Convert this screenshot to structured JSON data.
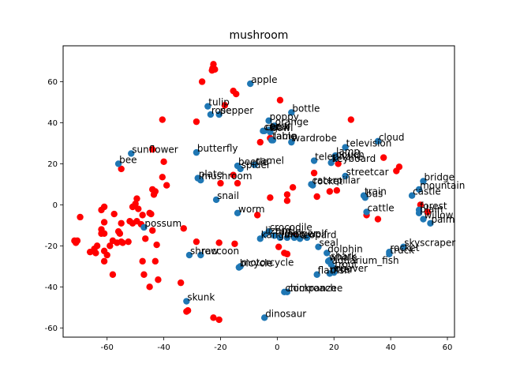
{
  "chart_data": {
    "type": "scatter",
    "title": "mushroom",
    "xlabel": "",
    "ylabel": "",
    "xlim": [
      -75.5,
      62.5
    ],
    "ylim": [
      -64.5,
      77.5
    ],
    "xticks": [
      -60,
      -40,
      -20,
      0,
      20,
      40,
      60
    ],
    "yticks": [
      -60,
      -40,
      -20,
      0,
      20,
      40,
      60
    ],
    "grid": false,
    "colors": {
      "labeled": "#1f77b4",
      "unlabeled": "#ff0000"
    },
    "labeled_points": [
      {
        "label": "apple",
        "x": -9.5,
        "y": 59.0
      },
      {
        "label": "tulip",
        "x": -24.5,
        "y": 48.0
      },
      {
        "label": "rose",
        "x": -23.5,
        "y": 44.0
      },
      {
        "label": "pepper",
        "x": -20.5,
        "y": 44.0
      },
      {
        "label": "bottle",
        "x": 5.0,
        "y": 45.0
      },
      {
        "label": "poppy",
        "x": -3.0,
        "y": 41.0
      },
      {
        "label": "orange",
        "x": -1.0,
        "y": 38.5
      },
      {
        "label": "pear",
        "x": -3.0,
        "y": 36.5
      },
      {
        "label": "cup",
        "x": -5.0,
        "y": 36.0
      },
      {
        "label": "bowl",
        "x": -2.5,
        "y": 35.5
      },
      {
        "label": "plate",
        "x": -28.0,
        "y": 13.0
      },
      {
        "label": "mushroom",
        "x": -27.0,
        "y": 12.0
      },
      {
        "label": "clock",
        "x": -4.5,
        "y": 36.0
      },
      {
        "label": "lamp",
        "x": -1.5,
        "y": 31.5
      },
      {
        "label": "table",
        "x": -2.0,
        "y": 31.5
      },
      {
        "label": "wardrobe",
        "x": 5.0,
        "y": 30.5
      },
      {
        "label": "cloud",
        "x": 35.5,
        "y": 31.0
      },
      {
        "label": "television",
        "x": 24.0,
        "y": 28.0
      },
      {
        "label": "lamp",
        "x": 20.5,
        "y": 24.0
      },
      {
        "label": "couch",
        "x": 20.5,
        "y": 22.5
      },
      {
        "label": "keyboard",
        "x": 19.0,
        "y": 20.5
      },
      {
        "label": "telephone",
        "x": 13.0,
        "y": 21.5
      },
      {
        "label": "sunflower",
        "x": -51.5,
        "y": 25.0
      },
      {
        "label": "butterfly",
        "x": -28.5,
        "y": 25.5
      },
      {
        "label": "bee",
        "x": -56.0,
        "y": 20.0
      },
      {
        "label": "beetle",
        "x": -14.0,
        "y": 19.0
      },
      {
        "label": "caterpillar",
        "x": 12.0,
        "y": 10.0
      },
      {
        "label": "spider",
        "x": -13.0,
        "y": 17.5
      },
      {
        "label": "camel",
        "x": -8.0,
        "y": 19.5
      },
      {
        "label": "streetcar",
        "x": 24.0,
        "y": 14.0
      },
      {
        "label": "rocket",
        "x": 12.5,
        "y": 9.5
      },
      {
        "label": "bridge",
        "x": 51.5,
        "y": 11.5
      },
      {
        "label": "castle",
        "x": 47.5,
        "y": 4.5
      },
      {
        "label": "mountain",
        "x": 50.0,
        "y": 7.5
      },
      {
        "label": "bus",
        "x": 31.0,
        "y": 3.5
      },
      {
        "label": "train",
        "x": 30.5,
        "y": 4.5
      },
      {
        "label": "snail",
        "x": -21.5,
        "y": 2.5
      },
      {
        "label": "cattle",
        "x": 31.5,
        "y": -3.5
      },
      {
        "label": "forest",
        "x": 50.0,
        "y": -2.5
      },
      {
        "label": "plain",
        "x": 50.0,
        "y": -4.0
      },
      {
        "label": "willow",
        "x": 51.5,
        "y": -7.0
      },
      {
        "label": "palm",
        "x": 54.0,
        "y": -9.0
      },
      {
        "label": "worm",
        "x": -14.0,
        "y": -4.0
      },
      {
        "label": "possum",
        "x": -47.0,
        "y": -11.0
      },
      {
        "label": "crocodile",
        "x": -3.0,
        "y": -13.0
      },
      {
        "label": "lizard",
        "x": -4.5,
        "y": -14.5
      },
      {
        "label": "turtle",
        "x": -1.0,
        "y": -15.0
      },
      {
        "label": "kangaroo",
        "x": -6.0,
        "y": -16.5
      },
      {
        "label": "fox",
        "x": 1.0,
        "y": -16.0
      },
      {
        "label": "lion",
        "x": 3.5,
        "y": -16.0
      },
      {
        "label": "tiger",
        "x": 6.0,
        "y": -16.0
      },
      {
        "label": "leopard",
        "x": 8.0,
        "y": -16.5
      },
      {
        "label": "wolf",
        "x": 10.5,
        "y": -16.0
      },
      {
        "label": "seal",
        "x": 14.5,
        "y": -20.5
      },
      {
        "label": "skyscraper",
        "x": 44.5,
        "y": -20.5
      },
      {
        "label": "truck",
        "x": 39.5,
        "y": -24.0
      },
      {
        "label": "rocket",
        "x": 39.5,
        "y": -23.0
      },
      {
        "label": "shrew",
        "x": -31.0,
        "y": -24.5
      },
      {
        "label": "raccoon",
        "x": -27.0,
        "y": -24.5
      },
      {
        "label": "bicycle",
        "x": -13.5,
        "y": -30.5
      },
      {
        "label": "motorcycle",
        "x": -13.0,
        "y": -30.0
      },
      {
        "label": "flatfish",
        "x": 14.0,
        "y": -34.0
      },
      {
        "label": "dolphin",
        "x": 17.5,
        "y": -23.5
      },
      {
        "label": "whale",
        "x": 18.0,
        "y": -27.5
      },
      {
        "label": "shark",
        "x": 18.5,
        "y": -27.0
      },
      {
        "label": "aquarium_fish",
        "x": 19.0,
        "y": -29.0
      },
      {
        "label": "trout",
        "x": 20.0,
        "y": -31.0
      },
      {
        "label": "beaver",
        "x": 20.0,
        "y": -33.0
      },
      {
        "label": "otter",
        "x": 18.5,
        "y": -33.5
      },
      {
        "label": "chimpanzee",
        "x": 2.5,
        "y": -42.5
      },
      {
        "label": "cockroach",
        "x": 3.5,
        "y": -42.5
      },
      {
        "label": "skunk",
        "x": -32.0,
        "y": -47.0
      },
      {
        "label": "dinosaur",
        "x": -4.5,
        "y": -55.0
      }
    ],
    "unlabeled_points": [
      {
        "x": -22.5,
        "y": 68.5
      },
      {
        "x": -22.8,
        "y": 66.5
      },
      {
        "x": -23.0,
        "y": 65.5
      },
      {
        "x": -22.0,
        "y": 66.0
      },
      {
        "x": -26.5,
        "y": 60.0
      },
      {
        "x": -15.5,
        "y": 55.5
      },
      {
        "x": -14.5,
        "y": 54.0
      },
      {
        "x": -18.5,
        "y": 48.5
      },
      {
        "x": 1.0,
        "y": 51.0
      },
      {
        "x": -40.5,
        "y": 41.5
      },
      {
        "x": -28.5,
        "y": 40.5
      },
      {
        "x": 26.0,
        "y": 41.5
      },
      {
        "x": -6.0,
        "y": 30.5
      },
      {
        "x": -2.5,
        "y": 32.5
      },
      {
        "x": 37.5,
        "y": 23.0
      },
      {
        "x": 43.0,
        "y": 18.5
      },
      {
        "x": 42.0,
        "y": 16.5
      },
      {
        "x": 21.5,
        "y": 20.0
      },
      {
        "x": -44.0,
        "y": 27.0
      },
      {
        "x": -40.0,
        "y": 21.0
      },
      {
        "x": -55.0,
        "y": 17.5
      },
      {
        "x": -40.5,
        "y": 13.5
      },
      {
        "x": -39.0,
        "y": 9.5
      },
      {
        "x": -44.0,
        "y": 7.5
      },
      {
        "x": -43.0,
        "y": 6.5
      },
      {
        "x": -43.5,
        "y": 5.0
      },
      {
        "x": -49.5,
        "y": 3.0
      },
      {
        "x": -50.0,
        "y": 0.5
      },
      {
        "x": -51.0,
        "y": -1.0
      },
      {
        "x": -49.0,
        "y": -2.0
      },
      {
        "x": -45.0,
        "y": -4.0
      },
      {
        "x": -44.5,
        "y": -4.5
      },
      {
        "x": -47.5,
        "y": -5.0
      },
      {
        "x": -57.5,
        "y": -4.5
      },
      {
        "x": -61.0,
        "y": -1.0
      },
      {
        "x": -62.0,
        "y": -2.5
      },
      {
        "x": -69.5,
        "y": -6.0
      },
      {
        "x": -55.0,
        "y": -9.0
      },
      {
        "x": -61.0,
        "y": -8.5
      },
      {
        "x": -51.0,
        "y": -9.0
      },
      {
        "x": -52.0,
        "y": -8.0
      },
      {
        "x": -49.5,
        "y": -8.0
      },
      {
        "x": -48.0,
        "y": -9.5
      },
      {
        "x": -44.0,
        "y": -12.5
      },
      {
        "x": -62.0,
        "y": -12.0
      },
      {
        "x": -62.0,
        "y": -14.0
      },
      {
        "x": -61.0,
        "y": -14.0
      },
      {
        "x": -56.0,
        "y": -13.0
      },
      {
        "x": -55.5,
        "y": -14.0
      },
      {
        "x": -46.5,
        "y": -16.5
      },
      {
        "x": -71.5,
        "y": -17.5
      },
      {
        "x": -70.5,
        "y": -17.5
      },
      {
        "x": -71.0,
        "y": -18.5
      },
      {
        "x": -58.0,
        "y": -17.5
      },
      {
        "x": -55.0,
        "y": -18.0
      },
      {
        "x": -56.5,
        "y": -18.5
      },
      {
        "x": -54.5,
        "y": -18.5
      },
      {
        "x": -52.5,
        "y": -18.0
      },
      {
        "x": -59.0,
        "y": -20.0
      },
      {
        "x": -63.5,
        "y": -20.0
      },
      {
        "x": -64.5,
        "y": -21.5
      },
      {
        "x": -66.0,
        "y": -23.0
      },
      {
        "x": -64.0,
        "y": -23.5
      },
      {
        "x": -61.0,
        "y": -22.5
      },
      {
        "x": -60.0,
        "y": -24.5
      },
      {
        "x": -42.5,
        "y": -19.5
      },
      {
        "x": -33.0,
        "y": -11.5
      },
      {
        "x": -28.5,
        "y": -18.0
      },
      {
        "x": -47.5,
        "y": -27.5
      },
      {
        "x": -43.0,
        "y": -27.5
      },
      {
        "x": -61.0,
        "y": -27.5
      },
      {
        "x": -58.0,
        "y": -34.0
      },
      {
        "x": -47.0,
        "y": -34.0
      },
      {
        "x": -42.0,
        "y": -36.5
      },
      {
        "x": -45.0,
        "y": -40.0
      },
      {
        "x": -34.0,
        "y": -38.0
      },
      {
        "x": -32.0,
        "y": -52.0
      },
      {
        "x": -31.5,
        "y": -51.5
      },
      {
        "x": -22.5,
        "y": -55.0
      },
      {
        "x": -20.5,
        "y": -56.0
      },
      {
        "x": -15.0,
        "y": -19.0
      },
      {
        "x": -20.5,
        "y": -18.5
      },
      {
        "x": -15.5,
        "y": 14.5
      },
      {
        "x": -14.0,
        "y": 10.5
      },
      {
        "x": -20.0,
        "y": 10.5
      },
      {
        "x": -7.0,
        "y": -5.0
      },
      {
        "x": -2.5,
        "y": 3.5
      },
      {
        "x": 5.5,
        "y": 8.5
      },
      {
        "x": 3.5,
        "y": 5.0
      },
      {
        "x": 3.5,
        "y": 2.0
      },
      {
        "x": 14.0,
        "y": 4.0
      },
      {
        "x": 13.0,
        "y": 15.5
      },
      {
        "x": 18.5,
        "y": 6.5
      },
      {
        "x": 21.0,
        "y": 7.0
      },
      {
        "x": 31.5,
        "y": -5.0
      },
      {
        "x": 35.5,
        "y": -7.0
      },
      {
        "x": 50.5,
        "y": 0.0
      },
      {
        "x": 53.0,
        "y": -3.5
      },
      {
        "x": 0.5,
        "y": -20.5
      },
      {
        "x": 3.5,
        "y": -24.0
      },
      {
        "x": 2.5,
        "y": -23.5
      },
      {
        "x": 6.0,
        "y": -15.5
      }
    ]
  }
}
